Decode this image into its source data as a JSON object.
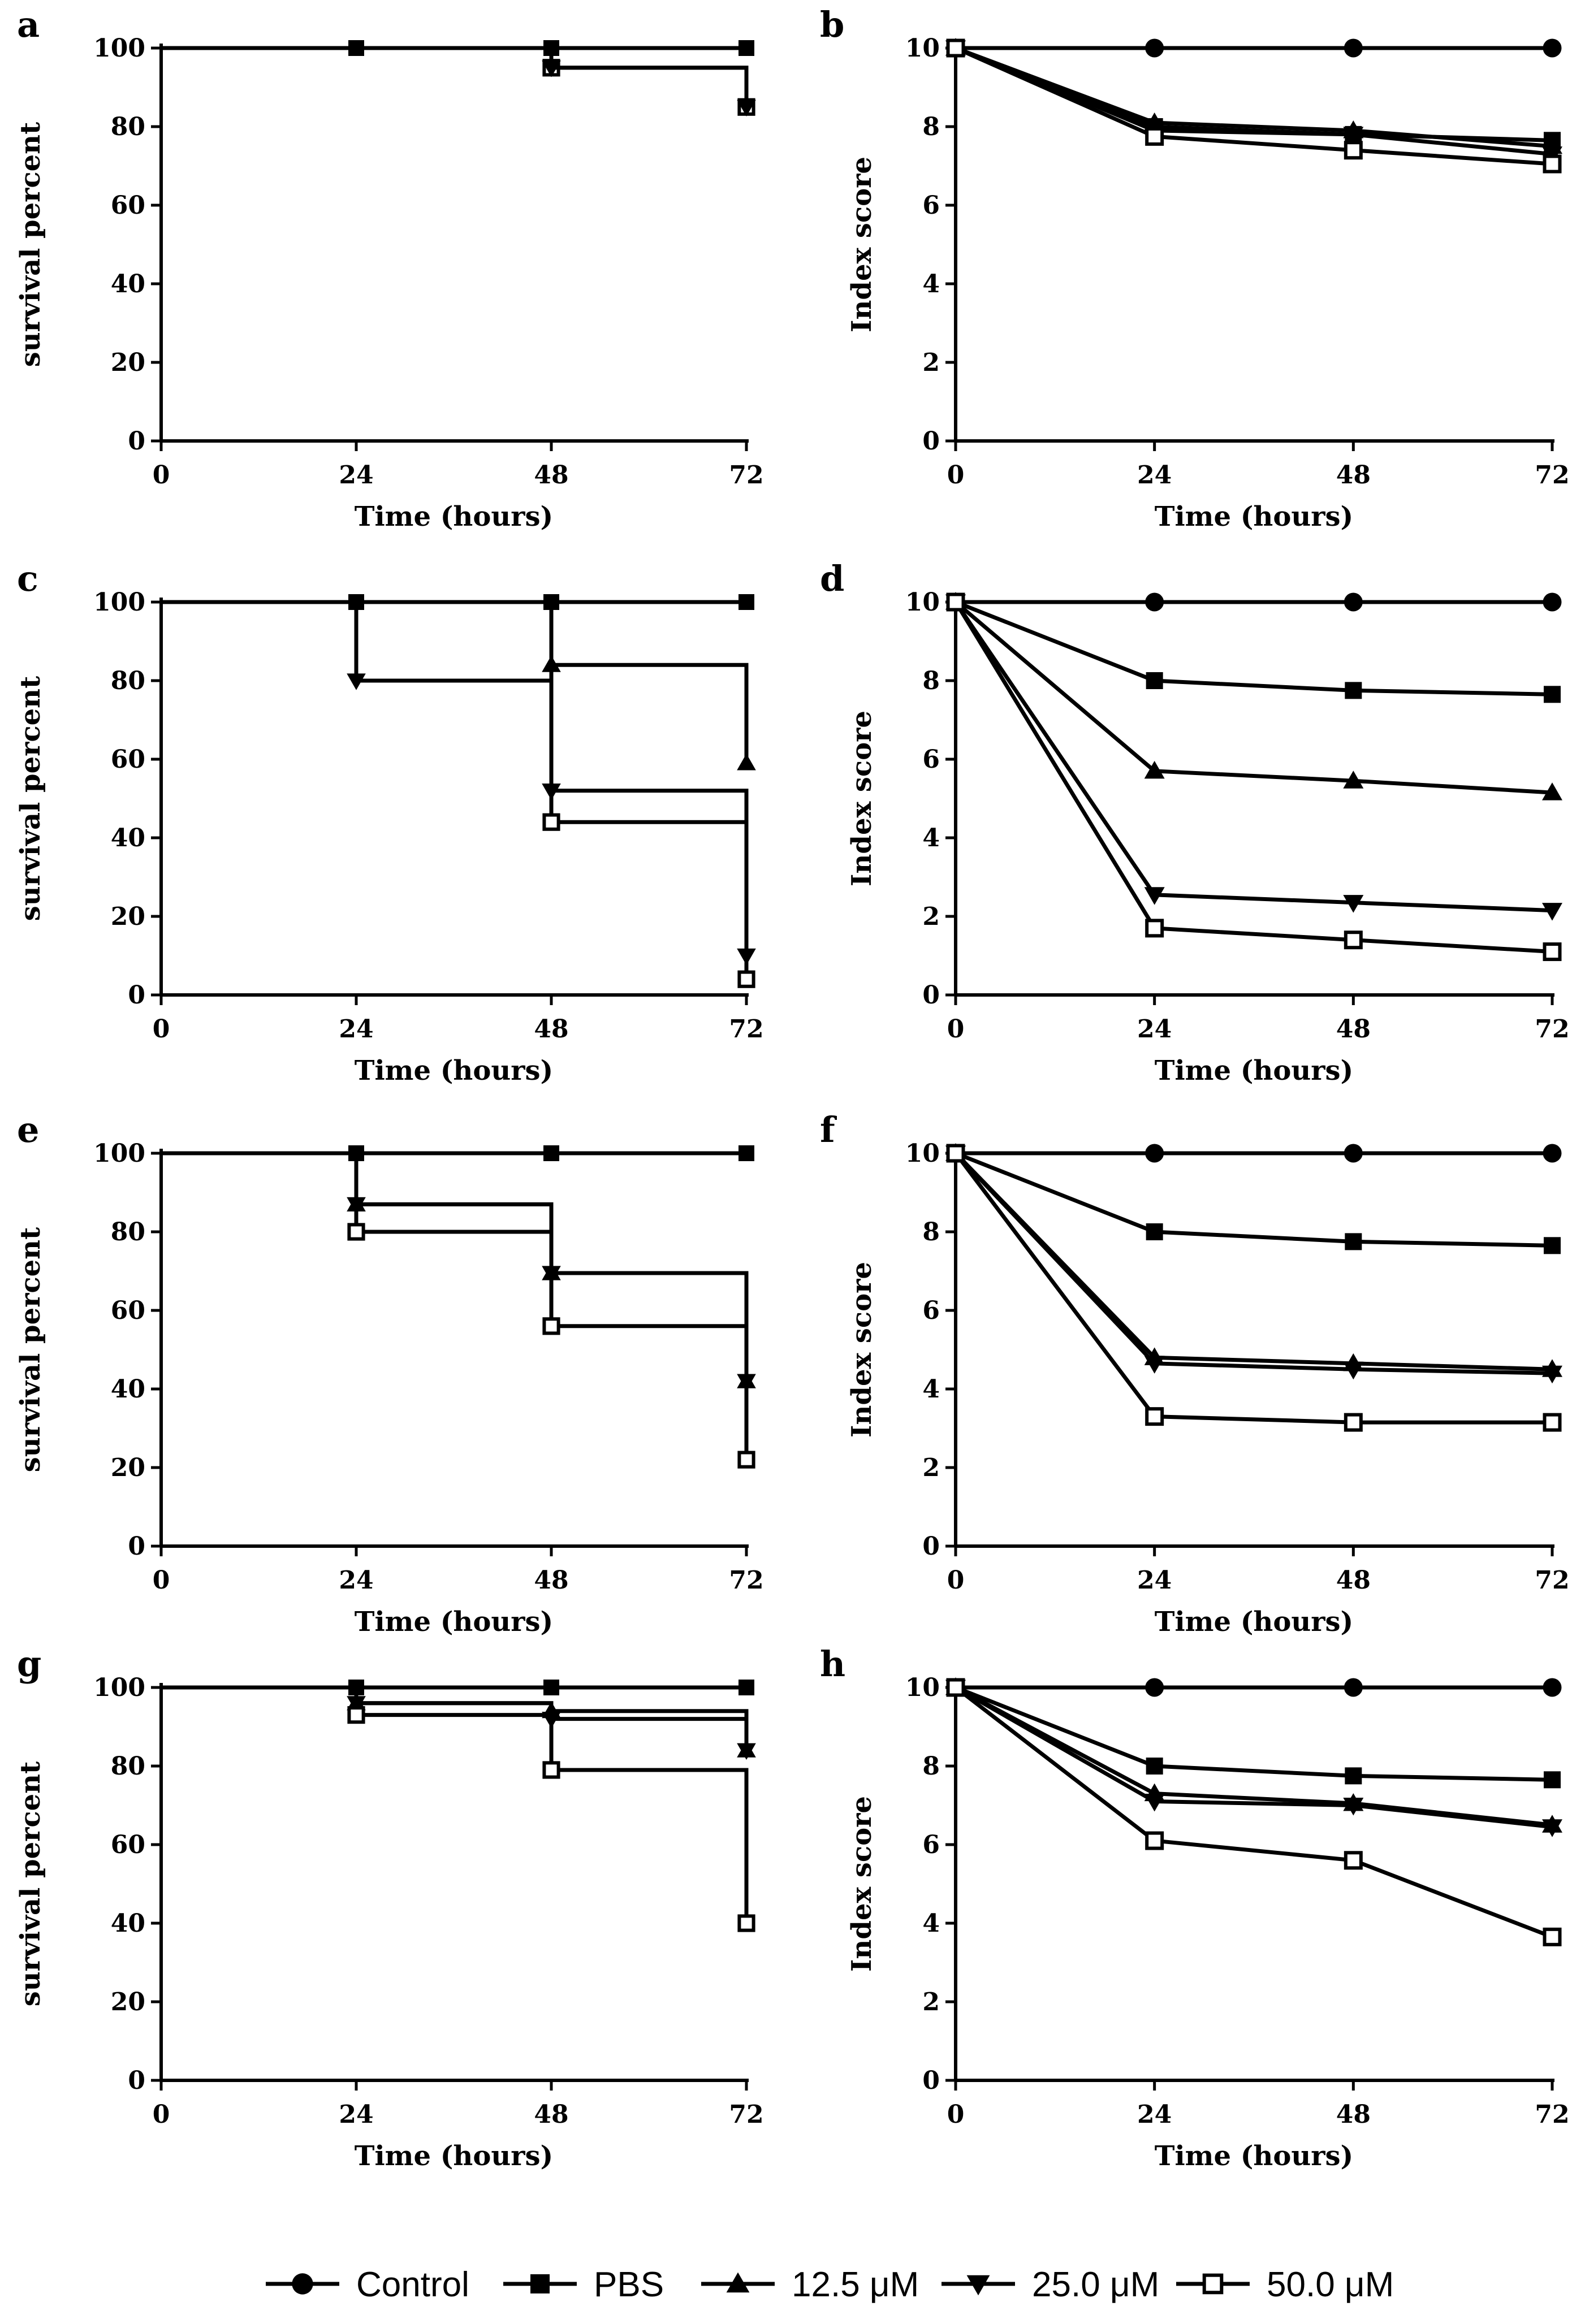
{
  "legend": {
    "items": [
      {
        "key": "control",
        "label": "Control",
        "marker": "circle"
      },
      {
        "key": "pbs",
        "label": "PBS",
        "marker": "square"
      },
      {
        "key": "c125",
        "label": "12.5 μM",
        "marker": "triangle-up"
      },
      {
        "key": "c250",
        "label": "25.0 μM",
        "marker": "triangle-down"
      },
      {
        "key": "c500",
        "label": "50.0 μM",
        "marker": "square-open"
      }
    ]
  },
  "chart_data": [
    {
      "panel": "a",
      "type": "survival-step",
      "xlabel": "Time (hours)",
      "ylabel": "survival percent",
      "xlim": [
        0,
        72
      ],
      "ylim": [
        0,
        100
      ],
      "xticks": [
        0,
        24,
        48,
        72
      ],
      "yticks": [
        0,
        20,
        40,
        60,
        80,
        100
      ],
      "series": [
        {
          "name": "PBS",
          "marker": "square",
          "x": [
            0,
            24,
            48,
            72
          ],
          "y": [
            100,
            100,
            100,
            100
          ]
        },
        {
          "name": "50.0 μM",
          "marker": "square-open",
          "x": [
            0,
            48,
            72
          ],
          "y": [
            100,
            95,
            85
          ]
        },
        {
          "name": "25.0 μM",
          "marker": "triangle-down",
          "x": [
            0,
            48,
            72
          ],
          "y": [
            100,
            95,
            85
          ]
        }
      ]
    },
    {
      "panel": "b",
      "type": "line",
      "xlabel": "Time (hours)",
      "ylabel": "Index score",
      "xlim": [
        0,
        72
      ],
      "ylim": [
        0,
        10
      ],
      "xticks": [
        0,
        24,
        48,
        72
      ],
      "yticks": [
        0,
        2,
        4,
        6,
        8,
        10
      ],
      "series": [
        {
          "name": "Control",
          "marker": "circle",
          "x": [
            0,
            24,
            48,
            72
          ],
          "y": [
            10,
            10,
            10,
            10
          ]
        },
        {
          "name": "PBS",
          "marker": "square",
          "x": [
            0,
            24,
            48,
            72
          ],
          "y": [
            10,
            8.0,
            7.8,
            7.65
          ]
        },
        {
          "name": "12.5 μM",
          "marker": "triangle-up",
          "x": [
            0,
            24,
            48,
            72
          ],
          "y": [
            10,
            8.1,
            7.9,
            7.5
          ]
        },
        {
          "name": "25.0 μM",
          "marker": "triangle-down",
          "x": [
            0,
            24,
            48,
            72
          ],
          "y": [
            10,
            7.9,
            7.8,
            7.3
          ]
        },
        {
          "name": "50.0 μM",
          "marker": "square-open",
          "x": [
            0,
            24,
            48,
            72
          ],
          "y": [
            10,
            7.75,
            7.4,
            7.05
          ]
        }
      ]
    },
    {
      "panel": "c",
      "type": "survival-step",
      "xlabel": "Time (hours)",
      "ylabel": "survival percent",
      "xlim": [
        0,
        72
      ],
      "ylim": [
        0,
        100
      ],
      "xticks": [
        0,
        24,
        48,
        72
      ],
      "yticks": [
        0,
        20,
        40,
        60,
        80,
        100
      ],
      "series": [
        {
          "name": "PBS",
          "marker": "square",
          "x": [
            0,
            24,
            48,
            72
          ],
          "y": [
            100,
            100,
            100,
            100
          ]
        },
        {
          "name": "12.5 μM",
          "marker": "triangle-up",
          "x": [
            0,
            48,
            72
          ],
          "y": [
            100,
            84,
            59
          ]
        },
        {
          "name": "25.0 μM",
          "marker": "triangle-down",
          "x": [
            0,
            24,
            48,
            72
          ],
          "y": [
            100,
            80,
            52,
            10
          ]
        },
        {
          "name": "50.0 μM",
          "marker": "square-open",
          "x": [
            0,
            48,
            72
          ],
          "y": [
            100,
            44,
            4
          ]
        }
      ]
    },
    {
      "panel": "d",
      "type": "line",
      "xlabel": "Time (hours)",
      "ylabel": "Index score",
      "xlim": [
        0,
        72
      ],
      "ylim": [
        0,
        10
      ],
      "xticks": [
        0,
        24,
        48,
        72
      ],
      "yticks": [
        0,
        2,
        4,
        6,
        8,
        10
      ],
      "series": [
        {
          "name": "Control",
          "marker": "circle",
          "x": [
            0,
            24,
            48,
            72
          ],
          "y": [
            10,
            10,
            10,
            10
          ]
        },
        {
          "name": "PBS",
          "marker": "square",
          "x": [
            0,
            24,
            48,
            72
          ],
          "y": [
            10,
            8.0,
            7.75,
            7.65
          ]
        },
        {
          "name": "12.5 μM",
          "marker": "triangle-up",
          "x": [
            0,
            24,
            48,
            72
          ],
          "y": [
            10,
            5.7,
            5.45,
            5.15
          ]
        },
        {
          "name": "25.0 μM",
          "marker": "triangle-down",
          "x": [
            0,
            24,
            48,
            72
          ],
          "y": [
            10,
            2.55,
            2.35,
            2.15
          ]
        },
        {
          "name": "50.0 μM",
          "marker": "square-open",
          "x": [
            0,
            24,
            48,
            72
          ],
          "y": [
            10,
            1.7,
            1.4,
            1.1
          ]
        }
      ]
    },
    {
      "panel": "e",
      "type": "survival-step",
      "xlabel": "Time (hours)",
      "ylabel": "survival percent",
      "xlim": [
        0,
        72
      ],
      "ylim": [
        0,
        100
      ],
      "xticks": [
        0,
        24,
        48,
        72
      ],
      "yticks": [
        0,
        20,
        40,
        60,
        80,
        100
      ],
      "series": [
        {
          "name": "PBS",
          "marker": "square",
          "x": [
            0,
            24,
            48,
            72
          ],
          "y": [
            100,
            100,
            100,
            100
          ]
        },
        {
          "name": "12.5 μM",
          "marker": "triangle-up",
          "x": [
            0,
            24,
            48,
            72
          ],
          "y": [
            100,
            87,
            69.5,
            42
          ]
        },
        {
          "name": "25.0 μM",
          "marker": "triangle-down",
          "x": [
            0,
            24,
            48,
            72
          ],
          "y": [
            100,
            87,
            69.5,
            42
          ]
        },
        {
          "name": "50.0 μM",
          "marker": "square-open",
          "x": [
            0,
            24,
            48,
            72
          ],
          "y": [
            100,
            80,
            56,
            22
          ]
        }
      ]
    },
    {
      "panel": "f",
      "type": "line",
      "xlabel": "Time (hours)",
      "ylabel": "Index score",
      "xlim": [
        0,
        72
      ],
      "ylim": [
        0,
        10
      ],
      "xticks": [
        0,
        24,
        48,
        72
      ],
      "yticks": [
        0,
        2,
        4,
        6,
        8,
        10
      ],
      "series": [
        {
          "name": "Control",
          "marker": "circle",
          "x": [
            0,
            24,
            48,
            72
          ],
          "y": [
            10,
            10,
            10,
            10
          ]
        },
        {
          "name": "PBS",
          "marker": "square",
          "x": [
            0,
            24,
            48,
            72
          ],
          "y": [
            10,
            8.0,
            7.75,
            7.65
          ]
        },
        {
          "name": "12.5 μM",
          "marker": "triangle-up",
          "x": [
            0,
            24,
            48,
            72
          ],
          "y": [
            10,
            4.8,
            4.65,
            4.5
          ]
        },
        {
          "name": "25.0 μM",
          "marker": "triangle-down",
          "x": [
            0,
            24,
            48,
            72
          ],
          "y": [
            10,
            4.65,
            4.5,
            4.4
          ]
        },
        {
          "name": "50.0 μM",
          "marker": "square-open",
          "x": [
            0,
            24,
            48,
            72
          ],
          "y": [
            10,
            3.3,
            3.15,
            3.15
          ]
        }
      ]
    },
    {
      "panel": "g",
      "type": "survival-step",
      "xlabel": "Time (hours)",
      "ylabel": "survival percent",
      "xlim": [
        0,
        72
      ],
      "ylim": [
        0,
        100
      ],
      "xticks": [
        0,
        24,
        48,
        72
      ],
      "yticks": [
        0,
        20,
        40,
        60,
        80,
        100
      ],
      "series": [
        {
          "name": "PBS",
          "marker": "square",
          "x": [
            0,
            24,
            48,
            72
          ],
          "y": [
            100,
            100,
            100,
            100
          ]
        },
        {
          "name": "12.5 μM",
          "marker": "triangle-up",
          "x": [
            0,
            24,
            48,
            72
          ],
          "y": [
            100,
            96,
            94,
            84
          ]
        },
        {
          "name": "25.0 μM",
          "marker": "triangle-down",
          "x": [
            0,
            24,
            48,
            72
          ],
          "y": [
            100,
            96,
            92,
            84
          ]
        },
        {
          "name": "50.0 μM",
          "marker": "square-open",
          "x": [
            0,
            24,
            48,
            72
          ],
          "y": [
            100,
            93,
            79,
            40
          ]
        }
      ]
    },
    {
      "panel": "h",
      "type": "line",
      "xlabel": "Time (hours)",
      "ylabel": "Index score",
      "xlim": [
        0,
        72
      ],
      "ylim": [
        0,
        10
      ],
      "xticks": [
        0,
        24,
        48,
        72
      ],
      "yticks": [
        0,
        2,
        4,
        6,
        8,
        10
      ],
      "series": [
        {
          "name": "Control",
          "marker": "circle",
          "x": [
            0,
            24,
            48,
            72
          ],
          "y": [
            10,
            10,
            10,
            10
          ]
        },
        {
          "name": "PBS",
          "marker": "square",
          "x": [
            0,
            24,
            48,
            72
          ],
          "y": [
            10,
            8.0,
            7.75,
            7.65
          ]
        },
        {
          "name": "12.5 μM",
          "marker": "triangle-up",
          "x": [
            0,
            24,
            48,
            72
          ],
          "y": [
            10,
            7.3,
            7.05,
            6.5
          ]
        },
        {
          "name": "25.0 μM",
          "marker": "triangle-down",
          "x": [
            0,
            24,
            48,
            72
          ],
          "y": [
            10,
            7.1,
            7.0,
            6.45
          ]
        },
        {
          "name": "50.0 μM",
          "marker": "square-open",
          "x": [
            0,
            24,
            48,
            72
          ],
          "y": [
            10,
            6.1,
            5.6,
            3.65
          ]
        }
      ]
    }
  ]
}
